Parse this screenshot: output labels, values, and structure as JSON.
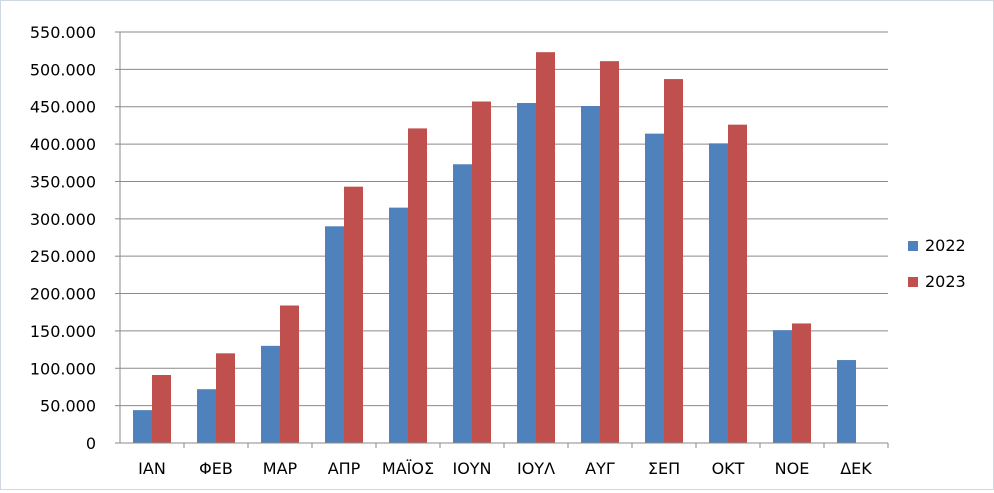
{
  "chart_data": {
    "type": "bar",
    "title": "",
    "xlabel": "",
    "ylabel": "",
    "categories": [
      "ΙΑΝ",
      "ΦΕΒ",
      "ΜΑΡ",
      "ΑΠΡ",
      "ΜΑΪΟΣ",
      "ΙΟΥΝ",
      "ΙΟΥΛ",
      "ΑΥΓ",
      "ΣΕΠ",
      "ΟΚΤ",
      "ΝΟΕ",
      "ΔΕΚ"
    ],
    "series": [
      {
        "name": "2022",
        "color": "#4f81bd",
        "values": [
          44000,
          72000,
          130000,
          290000,
          315000,
          373000,
          455000,
          451000,
          414000,
          401000,
          151000,
          111000
        ]
      },
      {
        "name": "2023",
        "color": "#c0504d",
        "values": [
          91000,
          120000,
          184000,
          343000,
          421000,
          457000,
          523000,
          511000,
          487000,
          426000,
          160000,
          null
        ]
      }
    ],
    "ylim": [
      0,
      550000
    ],
    "yticks": [
      0,
      50000,
      100000,
      150000,
      200000,
      250000,
      300000,
      350000,
      400000,
      450000,
      500000,
      550000
    ],
    "ytick_labels": [
      "0",
      "50.000",
      "100.000",
      "150.000",
      "200.000",
      "250.000",
      "300.000",
      "350.000",
      "400.000",
      "450.000",
      "500.000",
      "550.000"
    ],
    "grid": true,
    "legend_position": "right"
  }
}
